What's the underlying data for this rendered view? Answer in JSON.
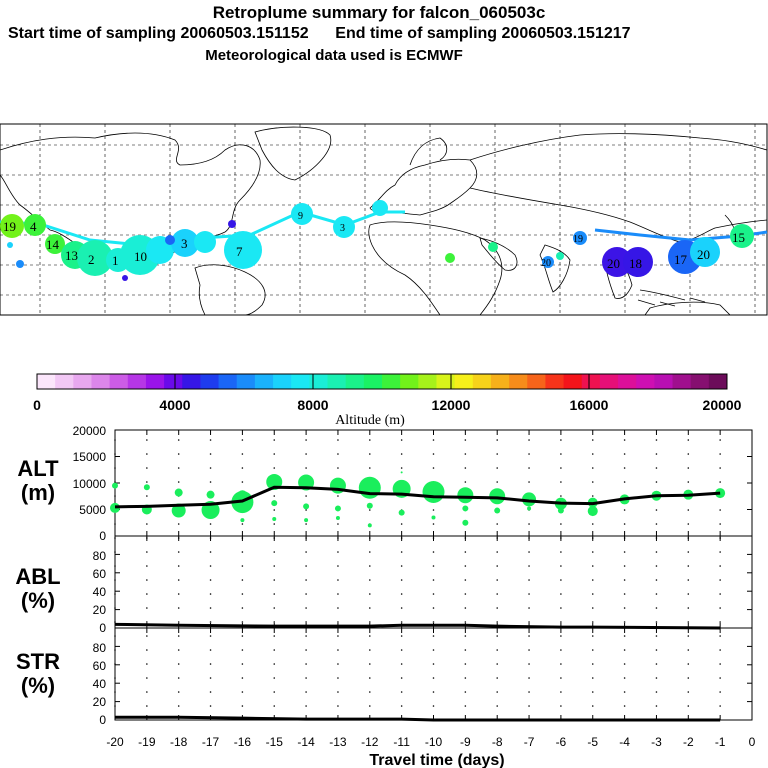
{
  "header": {
    "title": "Retroplume summary for falcon_060503c",
    "subtitle": "Start time of sampling 20060503.151152      End time of sampling 20060503.151217",
    "met": "Meteorological data used is ECMWF"
  },
  "colorbar": {
    "ticks": [
      "0",
      "4000",
      "8000",
      "12000",
      "16000",
      "20000"
    ],
    "label": "Altitude (m)",
    "colors": [
      "#fbe6fb",
      "#f2c8f5",
      "#e8a8ef",
      "#dc86ea",
      "#cc5ce6",
      "#b636e6",
      "#9a14ea",
      "#6a0aea",
      "#3616e6",
      "#1e3cee",
      "#1a66f6",
      "#1a8cfa",
      "#1ab2fc",
      "#1ad2fc",
      "#1ae8f4",
      "#1aeed6",
      "#1af0b2",
      "#1af28a",
      "#1af264",
      "#3cf23a",
      "#72f21a",
      "#a6f21a",
      "#d8f41a",
      "#f6f01a",
      "#f6d21a",
      "#f6b01a",
      "#f68c1a",
      "#f6641a",
      "#f6341a",
      "#f4141a",
      "#ee1250",
      "#e61078",
      "#dc109a",
      "#ce10b2",
      "#b810b2",
      "#a0108e",
      "#861070",
      "#6c0c5a"
    ]
  },
  "map_labels": [
    {
      "text": "19",
      "color": "#72f21a"
    },
    {
      "text": "4",
      "color": "#3cf23a"
    },
    {
      "text": "14",
      "color": "#3cf23a"
    },
    {
      "text": "13",
      "color": "#1af28a"
    },
    {
      "text": "2",
      "color": "#1af0b2"
    },
    {
      "text": "1",
      "color": "#1aeed6"
    },
    {
      "text": "10",
      "color": "#1ae8f4"
    },
    {
      "text": "3",
      "color": "#1ae8f4"
    },
    {
      "text": "7",
      "color": "#1ae8f4"
    },
    {
      "text": "9",
      "color": "#1ae8f4"
    },
    {
      "text": "3",
      "color": "#1ae8f4"
    },
    {
      "text": "19",
      "color": "#1a8cfa"
    },
    {
      "text": "20",
      "color": "#1a8cfa"
    },
    {
      "text": "20",
      "color": "#3c14e6"
    },
    {
      "text": "18",
      "color": "#3c14e6"
    },
    {
      "text": "17",
      "color": "#1a8cfa"
    },
    {
      "text": "20",
      "color": "#1ae8f4"
    },
    {
      "text": "15",
      "color": "#1af28a"
    }
  ],
  "alt_panel": {
    "label_top": "ALT",
    "label_bottom": "(m)",
    "yticks": [
      "0",
      "5000",
      "10000",
      "15000",
      "20000"
    ]
  },
  "abl_panel": {
    "label_top": "ABL",
    "label_bottom": "(%)",
    "yticks": [
      "0",
      "20",
      "40",
      "60",
      "80"
    ]
  },
  "str_panel": {
    "label_top": "STR",
    "label_bottom": "(%)",
    "yticks": [
      "0",
      "20",
      "40",
      "60",
      "80"
    ]
  },
  "xaxis": {
    "ticks": [
      "-20",
      "-19",
      "-18",
      "-17",
      "-16",
      "-15",
      "-14",
      "-13",
      "-12",
      "-11",
      "-10",
      "-9",
      "-8",
      "-7",
      "-6",
      "-5",
      "-4",
      "-3",
      "-2",
      "-1",
      "0"
    ],
    "label": "Travel time (days)"
  },
  "chart_data": [
    {
      "type": "line",
      "title": "ALT (m)",
      "xlabel": "Travel time (days)",
      "ylabel": "Altitude (m)",
      "xlim": [
        -20,
        0
      ],
      "ylim": [
        0,
        20000
      ],
      "series": [
        {
          "name": "mean altitude",
          "x": [
            -20,
            -19,
            -18,
            -17,
            -16,
            -15,
            -14,
            -13,
            -12,
            -11,
            -10,
            -9,
            -8,
            -7,
            -6,
            -5,
            -4,
            -3,
            -2,
            -1
          ],
          "values": [
            5500,
            5600,
            5800,
            6000,
            6600,
            9200,
            9100,
            8800,
            8000,
            7900,
            7400,
            7300,
            7200,
            6600,
            6200,
            6100,
            7000,
            7600,
            7700,
            8100
          ]
        }
      ],
      "clusters": [
        {
          "x": -20,
          "y": 9500,
          "r": 3
        },
        {
          "x": -20,
          "y": 5300,
          "r": 5
        },
        {
          "x": -19,
          "y": 9200,
          "r": 3
        },
        {
          "x": -19,
          "y": 5000,
          "r": 5
        },
        {
          "x": -18,
          "y": 8200,
          "r": 4
        },
        {
          "x": -18,
          "y": 4800,
          "r": 7
        },
        {
          "x": -17,
          "y": 7800,
          "r": 4
        },
        {
          "x": -17,
          "y": 4900,
          "r": 9
        },
        {
          "x": -16,
          "y": 7700,
          "r": 5
        },
        {
          "x": -16,
          "y": 6400,
          "r": 11
        },
        {
          "x": -16,
          "y": 3000,
          "r": 2
        },
        {
          "x": -15,
          "y": 10200,
          "r": 8
        },
        {
          "x": -15,
          "y": 6200,
          "r": 3
        },
        {
          "x": -15,
          "y": 3200,
          "r": 2
        },
        {
          "x": -14,
          "y": 10100,
          "r": 8
        },
        {
          "x": -14,
          "y": 5600,
          "r": 3
        },
        {
          "x": -14,
          "y": 3000,
          "r": 2
        },
        {
          "x": -13,
          "y": 9500,
          "r": 8
        },
        {
          "x": -13,
          "y": 5200,
          "r": 3
        },
        {
          "x": -13,
          "y": 3400,
          "r": 2
        },
        {
          "x": -12,
          "y": 9100,
          "r": 11
        },
        {
          "x": -12,
          "y": 5700,
          "r": 3
        },
        {
          "x": -12,
          "y": 2000,
          "r": 2
        },
        {
          "x": -11,
          "y": 8900,
          "r": 9
        },
        {
          "x": -11,
          "y": 4400,
          "r": 3
        },
        {
          "x": -11,
          "y": 12000,
          "r": 1
        },
        {
          "x": -10,
          "y": 8300,
          "r": 11
        },
        {
          "x": -10,
          "y": 3500,
          "r": 2
        },
        {
          "x": -9,
          "y": 7700,
          "r": 8
        },
        {
          "x": -9,
          "y": 5200,
          "r": 3
        },
        {
          "x": -9,
          "y": 2500,
          "r": 3
        },
        {
          "x": -8,
          "y": 7500,
          "r": 8
        },
        {
          "x": -8,
          "y": 4800,
          "r": 3
        },
        {
          "x": -7,
          "y": 6900,
          "r": 7
        },
        {
          "x": -7,
          "y": 5200,
          "r": 2
        },
        {
          "x": -6,
          "y": 6100,
          "r": 6
        },
        {
          "x": -6,
          "y": 4800,
          "r": 3
        },
        {
          "x": -5,
          "y": 6300,
          "r": 5
        },
        {
          "x": -5,
          "y": 4700,
          "r": 5
        },
        {
          "x": -4,
          "y": 6900,
          "r": 5
        },
        {
          "x": -3,
          "y": 7600,
          "r": 5
        },
        {
          "x": -2,
          "y": 7800,
          "r": 5
        },
        {
          "x": -1,
          "y": 8100,
          "r": 5
        }
      ]
    },
    {
      "type": "line",
      "title": "ABL (%)",
      "xlim": [
        -20,
        0
      ],
      "ylim": [
        0,
        100
      ],
      "series": [
        {
          "name": "ABL",
          "x": [
            -20,
            -18,
            -15,
            -12,
            -11,
            -9,
            -8,
            -6,
            -5,
            -1
          ],
          "values": [
            4,
            3,
            2,
            2,
            3,
            3,
            2,
            1,
            1,
            0
          ]
        }
      ]
    },
    {
      "type": "line",
      "title": "STR (%)",
      "xlim": [
        -20,
        0
      ],
      "ylim": [
        0,
        100
      ],
      "series": [
        {
          "name": "STR",
          "x": [
            -20,
            -18,
            -16,
            -14,
            -12,
            -11,
            -10,
            -9,
            -1
          ],
          "values": [
            3,
            3,
            2,
            1,
            1,
            1,
            0,
            0,
            0
          ]
        }
      ]
    }
  ]
}
